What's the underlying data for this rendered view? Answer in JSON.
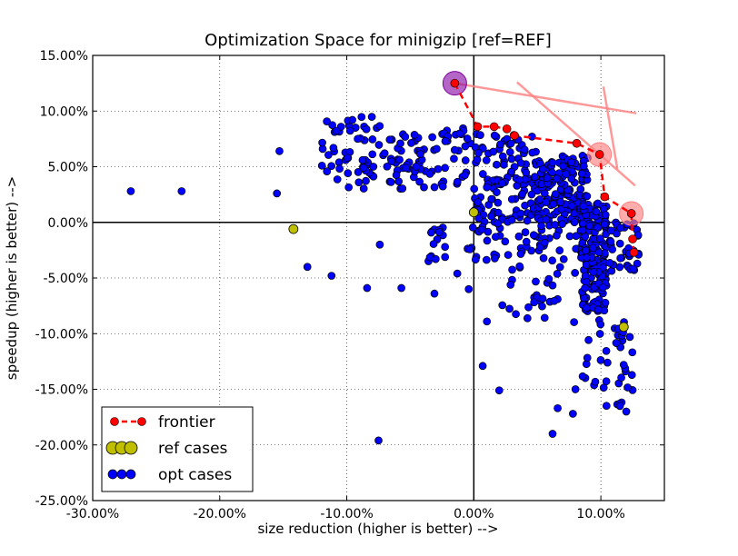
{
  "chart_data": {
    "type": "scatter",
    "title": "Optimization Space for minigzip [ref=REF]",
    "xlabel": "size reduction (higher is better) -->",
    "ylabel": "speedup (higher is better) -->",
    "xlim": [
      -30,
      15
    ],
    "ylim": [
      -25,
      15
    ],
    "xticks": [
      -30,
      -20,
      -10,
      0,
      10
    ],
    "yticks": [
      -25,
      -20,
      -15,
      -10,
      -5,
      0,
      5,
      10,
      15
    ],
    "xtick_labels": [
      "-30.00%",
      "-20.00%",
      "-10.00%",
      "0.00%",
      "10.00%"
    ],
    "ytick_labels": [
      "-25.00%",
      "-20.00%",
      "-15.00%",
      "-10.00%",
      "-5.00%",
      "0.00%",
      "5.00%",
      "10.00%",
      "15.00%"
    ],
    "grid": true,
    "legend_position": "lower-left",
    "legend": [
      {
        "label": "frontier",
        "style": "frontier"
      },
      {
        "label": "ref cases",
        "style": "ref"
      },
      {
        "label": "opt cases",
        "style": "opt"
      }
    ],
    "colors": {
      "frontier": "#ff0000",
      "ref": "#bfbf00",
      "opt": "#0000ff",
      "highlight_purple": "#8000a0",
      "highlight_pink": "#ff8080"
    },
    "frontier": {
      "x": [
        -1.5,
        0.3,
        1.6,
        2.6,
        3.2,
        8.1,
        9.9,
        10.3,
        12.4,
        12.5,
        12.6
      ],
      "y": [
        12.5,
        8.6,
        8.6,
        8.4,
        7.8,
        7.1,
        6.1,
        2.3,
        0.8,
        -1.5,
        -2.7
      ]
    },
    "highlights": [
      {
        "x": -1.5,
        "y": 12.5,
        "color": "purple"
      },
      {
        "x": 9.9,
        "y": 6.1,
        "color": "pink"
      },
      {
        "x": 12.4,
        "y": 0.8,
        "color": "pink"
      }
    ],
    "arrows": [
      {
        "x1": -1.5,
        "y1": 12.5,
        "x2": 12.8,
        "y2": 9.8
      },
      {
        "x1": 3.4,
        "y1": 12.6,
        "x2": 12.7,
        "y2": 3.3
      },
      {
        "x1": 10.2,
        "y1": 12.2,
        "x2": 11.3,
        "y2": 4.8
      }
    ],
    "ref_cases": {
      "x": [
        -14.2,
        0.0,
        11.8
      ],
      "y": [
        -0.6,
        0.9,
        -9.4
      ]
    },
    "opt_clusters": [
      {
        "x": [
          -12,
          -7
        ],
        "y": [
          3,
          9.5
        ],
        "n": 60
      },
      {
        "x": [
          -7,
          -3
        ],
        "y": [
          3,
          8
        ],
        "n": 50
      },
      {
        "x": [
          -3,
          0
        ],
        "y": [
          3,
          8.5
        ],
        "n": 30
      },
      {
        "x": [
          0,
          5
        ],
        "y": [
          0,
          8
        ],
        "n": 120
      },
      {
        "x": [
          5,
          9
        ],
        "y": [
          0,
          6
        ],
        "n": 160
      },
      {
        "x": [
          0,
          9
        ],
        "y": [
          -3.5,
          0
        ],
        "n": 60
      },
      {
        "x": [
          8.5,
          10.5
        ],
        "y": [
          -8,
          2
        ],
        "n": 160
      },
      {
        "x": [
          10.5,
          13
        ],
        "y": [
          -4.5,
          0
        ],
        "n": 40
      },
      {
        "x": [
          8.5,
          12.5
        ],
        "y": [
          -16.5,
          -8
        ],
        "n": 40
      },
      {
        "x": [
          1,
          8
        ],
        "y": [
          -9,
          -3.5
        ],
        "n": 30
      },
      {
        "x": [
          -4,
          0
        ],
        "y": [
          -3.5,
          0
        ],
        "n": 20
      }
    ],
    "opt_extra": {
      "x": [
        -27,
        -23,
        -15.5,
        -15.3,
        -13.1,
        -11.2,
        -8.4,
        -7.5,
        -7.4,
        -5.7,
        -3.1,
        -1.3,
        -0.4,
        0.7,
        2.0,
        6.2,
        6.6,
        7.8,
        8.0,
        11.5,
        12.0
      ],
      "y": [
        2.8,
        2.8,
        2.6,
        6.4,
        -4.0,
        -4.8,
        -5.9,
        -19.6,
        -2.0,
        -5.9,
        -6.4,
        -4.6,
        -6.0,
        -12.9,
        -15.1,
        -19.0,
        -16.7,
        -17.2,
        -15.0,
        -16.5,
        -17.0
      ]
    }
  }
}
